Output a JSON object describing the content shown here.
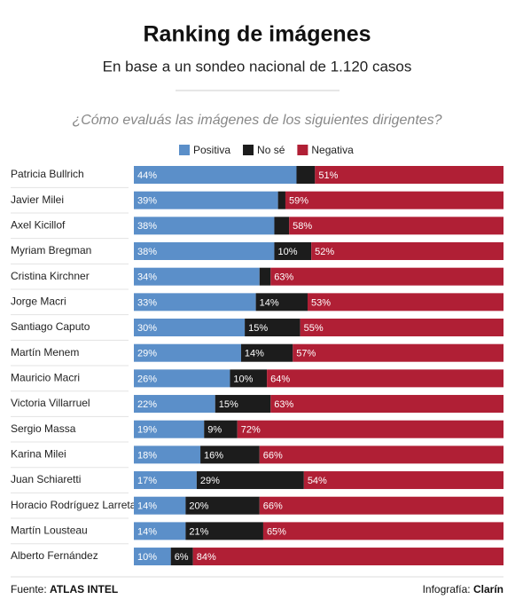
{
  "chart_data": {
    "type": "stacked-bar-horizontal",
    "title": "Ranking de imágenes",
    "subtitle": "En base a un sondeo nacional de 1.120 casos",
    "question": "¿Cómo evaluás las imágenes de los siguientes dirigentes?",
    "categories": [
      "Patricia Bullrich",
      "Javier Milei",
      "Axel Kicillof",
      "Myriam Bregman",
      "Cristina Kirchner",
      "Jorge Macri",
      "Santiago Caputo",
      "Martín Menem",
      "Mauricio Macri",
      "Victoria Villarruel",
      "Sergio Massa",
      "Karina Milei",
      "Juan Schiaretti",
      "Horacio Rodríguez Larreta",
      "Martín Lousteau",
      "Alberto Fernández"
    ],
    "series": [
      {
        "name": "Positiva",
        "color": "#5b8fc9",
        "values": [
          44,
          39,
          38,
          38,
          34,
          33,
          30,
          29,
          26,
          22,
          19,
          18,
          17,
          14,
          14,
          10
        ],
        "value_labels": [
          "44%",
          "39%",
          "38%",
          "38%",
          "34%",
          "33%",
          "30%",
          "29%",
          "26%",
          "22%",
          "19%",
          "18%",
          "17%",
          "14%",
          "14%",
          "10%"
        ]
      },
      {
        "name": "No sé",
        "color": "#1c1c1c",
        "values": [
          5,
          2,
          4,
          10,
          3,
          14,
          15,
          14,
          10,
          15,
          9,
          16,
          29,
          20,
          21,
          6
        ],
        "value_labels": [
          null,
          null,
          null,
          "10%",
          null,
          "14%",
          "15%",
          "14%",
          "10%",
          "15%",
          "9%",
          "16%",
          "29%",
          "20%",
          "21%",
          "6%"
        ]
      },
      {
        "name": "Negativa",
        "color": "#b01f35",
        "values": [
          51,
          59,
          58,
          52,
          63,
          53,
          55,
          57,
          64,
          63,
          72,
          66,
          54,
          66,
          65,
          84
        ],
        "value_labels": [
          "51%",
          "59%",
          "58%",
          "52%",
          "63%",
          "53%",
          "55%",
          "57%",
          "64%",
          "63%",
          "72%",
          "66%",
          "54%",
          "66%",
          "65%",
          "84%"
        ]
      }
    ]
  },
  "footer": {
    "source_label": "Fuente:",
    "source": "ATLAS INTEL",
    "credit_label": "Infografía:",
    "credit": "Clarín"
  }
}
